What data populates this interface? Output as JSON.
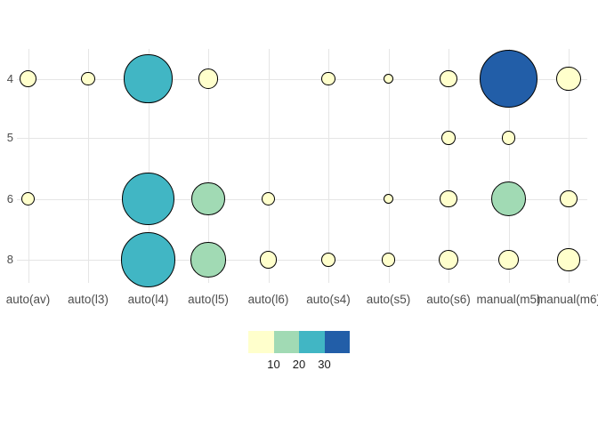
{
  "chart_data": {
    "type": "scatter",
    "subtype": "bubble-count",
    "title": "",
    "xlabel": "",
    "ylabel": "",
    "x_categories": [
      "auto(av)",
      "auto(l3)",
      "auto(l4)",
      "auto(l5)",
      "auto(l6)",
      "auto(s4)",
      "auto(s5)",
      "auto(s6)",
      "manual(m5)",
      "manual(m6)"
    ],
    "y_categories": [
      "4",
      "5",
      "6",
      "8"
    ],
    "grid": "on",
    "legend_position": "bottom-center",
    "points": [
      {
        "x": "auto(av)",
        "y": "4",
        "n": 3
      },
      {
        "x": "auto(l3)",
        "y": "4",
        "n": 2
      },
      {
        "x": "auto(l4)",
        "y": "4",
        "n": 23
      },
      {
        "x": "auto(l5)",
        "y": "4",
        "n": 4
      },
      {
        "x": "auto(s4)",
        "y": "4",
        "n": 2
      },
      {
        "x": "auto(s5)",
        "y": "4",
        "n": 1
      },
      {
        "x": "auto(s6)",
        "y": "4",
        "n": 3
      },
      {
        "x": "manual(m5)",
        "y": "4",
        "n": 33
      },
      {
        "x": "manual(m6)",
        "y": "4",
        "n": 6
      },
      {
        "x": "auto(s6)",
        "y": "5",
        "n": 2
      },
      {
        "x": "manual(m5)",
        "y": "5",
        "n": 2
      },
      {
        "x": "auto(av)",
        "y": "6",
        "n": 2
      },
      {
        "x": "auto(l4)",
        "y": "6",
        "n": 27
      },
      {
        "x": "auto(l5)",
        "y": "6",
        "n": 11
      },
      {
        "x": "auto(l6)",
        "y": "6",
        "n": 2
      },
      {
        "x": "auto(s5)",
        "y": "6",
        "n": 1
      },
      {
        "x": "auto(s6)",
        "y": "6",
        "n": 3
      },
      {
        "x": "manual(m5)",
        "y": "6",
        "n": 12
      },
      {
        "x": "manual(m6)",
        "y": "6",
        "n": 3
      },
      {
        "x": "auto(l4)",
        "y": "8",
        "n": 30
      },
      {
        "x": "auto(l5)",
        "y": "8",
        "n": 12
      },
      {
        "x": "auto(l6)",
        "y": "8",
        "n": 3
      },
      {
        "x": "auto(s4)",
        "y": "8",
        "n": 2
      },
      {
        "x": "auto(s5)",
        "y": "8",
        "n": 2
      },
      {
        "x": "auto(s6)",
        "y": "8",
        "n": 4
      },
      {
        "x": "manual(m5)",
        "y": "8",
        "n": 4
      },
      {
        "x": "manual(m6)",
        "y": "8",
        "n": 5
      }
    ],
    "size_scale": {
      "min_n": 1,
      "max_n": 33
    },
    "legend": {
      "tick_labels": [
        "10",
        "20",
        "30"
      ],
      "bin_ranges": [
        "0-10",
        "10-20",
        "20-30",
        "30+"
      ],
      "bin_colors": [
        "#FFFFCC",
        "#A1DAB4",
        "#41B6C4",
        "#225EA8"
      ]
    },
    "colors": {
      "circle_stroke": "#000000",
      "gridline": "#E5E5E5",
      "axis_text": "#4D4D4D",
      "legend_text": "#1A1A1A",
      "background": "#FFFFFF"
    }
  }
}
